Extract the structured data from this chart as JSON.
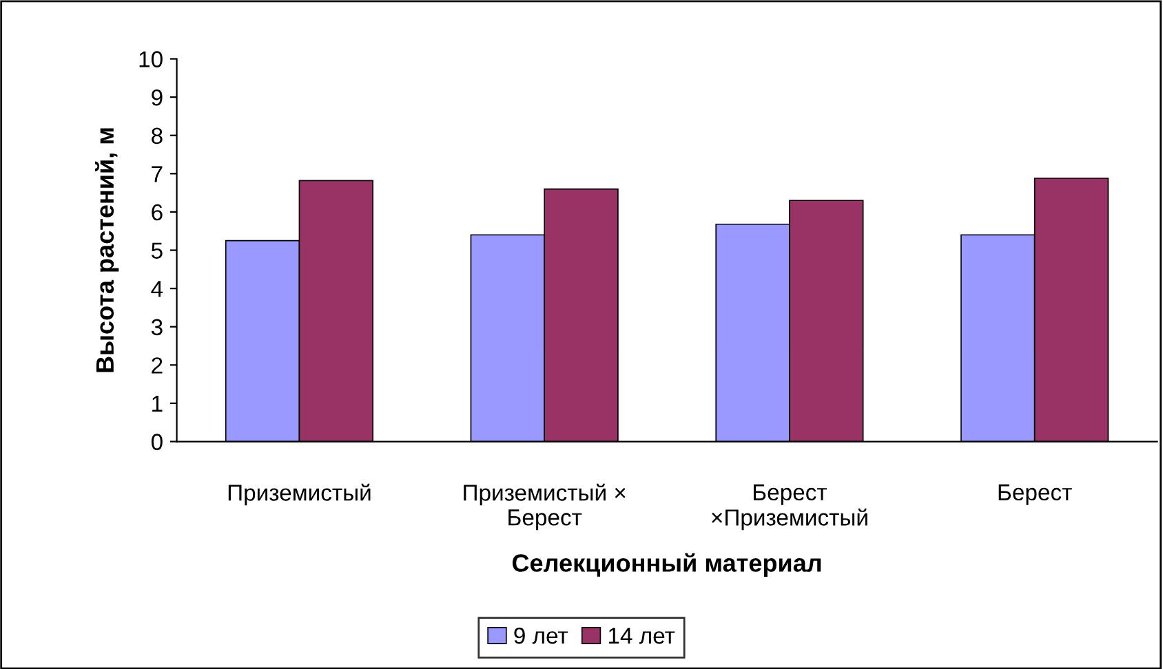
{
  "chart_data": {
    "type": "bar",
    "xlabel": "Селекционный материал",
    "ylabel": "Высота растений, м",
    "categories": [
      "Приземистый",
      "Приземистый ×\nБерест",
      "Берест\n×Приземистый",
      "Берест"
    ],
    "series": [
      {
        "name": "9 лет",
        "color": "#9999ff",
        "values": [
          5.25,
          5.4,
          5.68,
          5.4
        ]
      },
      {
        "name": "14 лет",
        "color": "#993366",
        "values": [
          6.82,
          6.6,
          6.3,
          6.88
        ]
      }
    ],
    "ylim": [
      0,
      10
    ],
    "yticks": [
      0,
      1,
      2,
      3,
      4,
      5,
      6,
      7,
      8,
      9,
      10
    ],
    "grid": false,
    "legend": "bottom"
  }
}
